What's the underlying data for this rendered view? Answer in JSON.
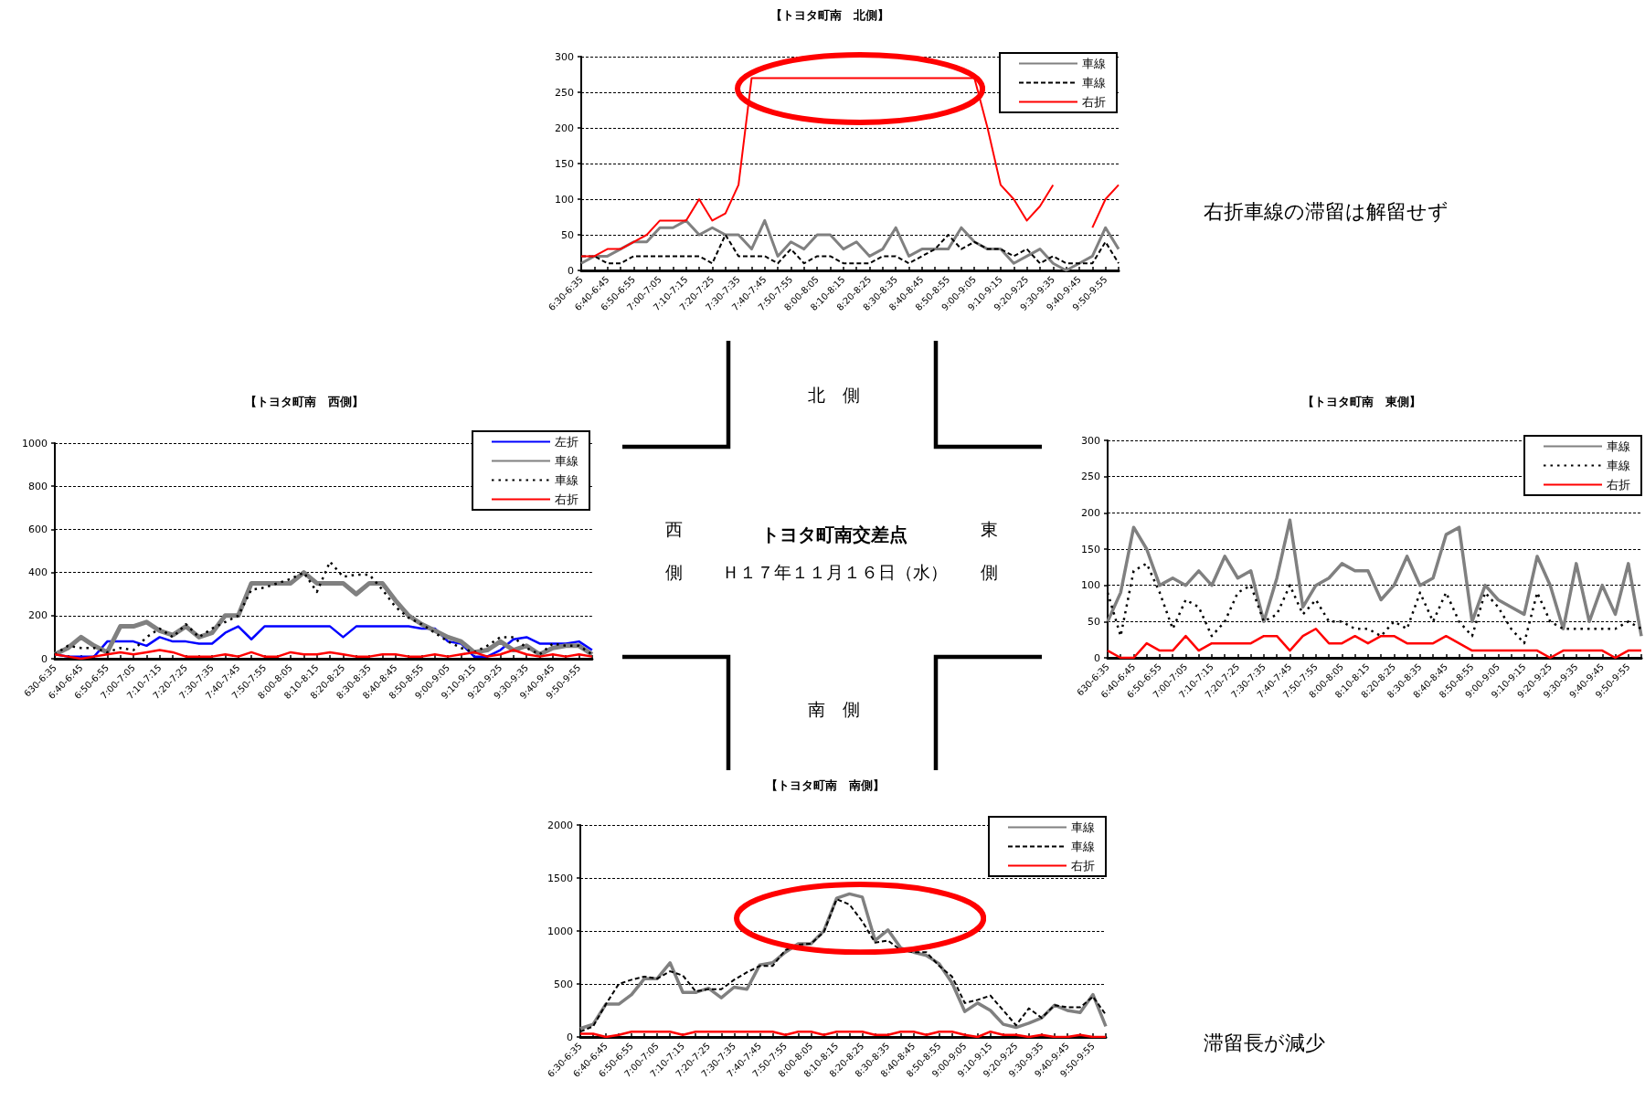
{
  "chart_data": [
    {
      "type": "line",
      "title": "【トヨタ町南　北側】",
      "categories": [
        "6:30-6:35",
        null,
        "6:40-6:45",
        null,
        "6:50-6:55",
        null,
        "7:00-7:05",
        null,
        "7:10-7:15",
        null,
        "7:20-7:25",
        null,
        "7:30-7:35",
        null,
        "7:40-7:45",
        null,
        "7:50-7:55",
        null,
        "8:00-8:05",
        null,
        "8:10-8:15",
        null,
        "8:20-8:25",
        null,
        "8:30-8:35",
        null,
        "8:40-8:45",
        null,
        "8:50-8:55",
        null,
        "9:00-9:05",
        null,
        "9:10-9:15",
        null,
        "9:20-9:25",
        null,
        "9:30-9:35",
        null,
        "9:40-9:45",
        null,
        "9:50-9:55",
        null
      ],
      "series": [
        {
          "name": "車線",
          "color": "#808080",
          "line_style": "solid",
          "values": [
            10,
            20,
            20,
            30,
            40,
            40,
            60,
            60,
            70,
            50,
            60,
            50,
            50,
            30,
            70,
            20,
            40,
            30,
            50,
            50,
            30,
            40,
            20,
            30,
            60,
            20,
            30,
            30,
            30,
            60,
            40,
            30,
            30,
            10,
            20,
            30,
            10,
            0,
            10,
            20,
            60,
            30
          ]
        },
        {
          "name": "車線",
          "color": "#000000",
          "line_style": "dashed",
          "values": [
            20,
            20,
            10,
            10,
            20,
            20,
            20,
            20,
            20,
            20,
            10,
            50,
            20,
            20,
            20,
            10,
            30,
            10,
            20,
            20,
            10,
            10,
            10,
            20,
            20,
            10,
            20,
            30,
            50,
            30,
            40,
            30,
            30,
            20,
            30,
            10,
            20,
            10,
            10,
            10,
            40,
            10
          ]
        },
        {
          "name": "右折",
          "color": "#ff0000",
          "line_style": "solid",
          "values": [
            20,
            20,
            30,
            30,
            40,
            50,
            70,
            70,
            70,
            100,
            70,
            80,
            120,
            270,
            270,
            270,
            270,
            270,
            270,
            270,
            270,
            270,
            270,
            270,
            270,
            270,
            270,
            270,
            270,
            270,
            270,
            200,
            120,
            100,
            70,
            90,
            120,
            null,
            null,
            60,
            100,
            120
          ]
        }
      ],
      "ylim": [
        0,
        300
      ],
      "yticks": [
        0,
        50,
        100,
        150,
        200,
        250,
        300
      ],
      "grid": "y",
      "legend": "top right",
      "marker": "none",
      "annotations": [
        "右折車線の滞留は解留せず"
      ]
    },
    {
      "type": "line",
      "title": "【トヨタ町南　西側】",
      "categories": [
        "630-6:35",
        null,
        "6:40-6:45",
        null,
        "6:50-6:55",
        null,
        "7:00-7:05",
        null,
        "7:10-7:15",
        null,
        "7:20-7:25",
        null,
        "7:30-7:35",
        null,
        "7:40-7:45",
        null,
        "7:50-7:55",
        null,
        "8:00-8:05",
        null,
        "8:10-8:15",
        null,
        "8:20-8:25",
        null,
        "8:30-8:35",
        null,
        "8:40-8:45",
        null,
        "8:50-8:55",
        null,
        "9:00-9:05",
        null,
        "9:10-9:15",
        null,
        "9:20-9:25",
        null,
        "9:30-9:35",
        null,
        "9:40-9:45",
        null,
        "9:50-9:55",
        null
      ],
      "series": [
        {
          "name": "左折",
          "color": "#0000ff",
          "line_style": "solid",
          "values": [
            20,
            10,
            10,
            10,
            80,
            80,
            80,
            60,
            100,
            80,
            80,
            70,
            70,
            120,
            150,
            90,
            150,
            150,
            150,
            150,
            150,
            150,
            100,
            150,
            150,
            150,
            150,
            150,
            140,
            140,
            80,
            70,
            10,
            10,
            40,
            90,
            100,
            70,
            70,
            70,
            80,
            40
          ]
        },
        {
          "name": "車線",
          "color": "#808080",
          "line_style": "solid",
          "values": [
            20,
            50,
            100,
            60,
            30,
            150,
            150,
            170,
            130,
            110,
            150,
            100,
            120,
            200,
            200,
            350,
            350,
            350,
            350,
            400,
            350,
            350,
            350,
            300,
            350,
            350,
            270,
            200,
            160,
            130,
            100,
            80,
            30,
            40,
            80,
            40,
            60,
            20,
            50,
            60,
            60,
            20
          ]
        },
        {
          "name": "車線",
          "color": "#000000",
          "line_style": "dotted",
          "values": [
            20,
            60,
            50,
            50,
            30,
            50,
            40,
            100,
            140,
            100,
            160,
            100,
            140,
            170,
            200,
            320,
            330,
            350,
            370,
            400,
            310,
            450,
            380,
            390,
            390,
            320,
            240,
            190,
            160,
            120,
            80,
            50,
            30,
            60,
            100,
            100,
            50,
            20,
            70,
            60,
            60,
            20
          ]
        },
        {
          "name": "右折",
          "color": "#ff0000",
          "line_style": "solid",
          "values": [
            20,
            10,
            0,
            10,
            20,
            30,
            20,
            30,
            40,
            30,
            10,
            10,
            10,
            20,
            10,
            30,
            10,
            10,
            30,
            20,
            20,
            30,
            20,
            10,
            10,
            20,
            20,
            10,
            10,
            20,
            10,
            20,
            30,
            10,
            20,
            40,
            20,
            10,
            20,
            10,
            20,
            10
          ]
        }
      ],
      "ylim": [
        0,
        1000
      ],
      "yticks": [
        0,
        200,
        400,
        600,
        800,
        1000
      ],
      "grid": "y",
      "legend": "top right",
      "marker": "none"
    },
    {
      "type": "other",
      "title": "トヨタ町南交差点",
      "subtitle": "Ｈ１７年１１月１６日（水）",
      "annotations": [
        "北　側",
        "西側",
        "東側",
        "南　側"
      ]
    },
    {
      "type": "line",
      "title": "【トヨタ町南　東側】",
      "categories": [
        "630-6:35",
        null,
        "6:40-6:45",
        null,
        "6:50-6:55",
        null,
        "7:00-7:05",
        null,
        "7:10-7:15",
        null,
        "7:20-7:25",
        null,
        "7:30-7:35",
        null,
        "7:40-7:45",
        null,
        "7:50-7:55",
        null,
        "8:00-8:05",
        null,
        "8:10-8:15",
        null,
        "8:20-8:25",
        null,
        "8:30-8:35",
        null,
        "8:40-8:45",
        null,
        "8:50-8:55",
        null,
        "9:00-9:05",
        null,
        "9:10-9:15",
        null,
        "9:20-9:25",
        null,
        "9:30-9:35",
        null,
        "9:40-9:45",
        null,
        "9:50-9:55",
        null
      ],
      "series": [
        {
          "name": "車線",
          "color": "#808080",
          "line_style": "solid",
          "values": [
            50,
            90,
            180,
            150,
            100,
            110,
            100,
            120,
            100,
            140,
            110,
            120,
            50,
            110,
            190,
            70,
            100,
            110,
            130,
            120,
            120,
            80,
            100,
            140,
            100,
            110,
            170,
            180,
            50,
            100,
            80,
            70,
            60,
            140,
            100,
            40,
            130,
            50,
            100,
            60,
            130,
            30
          ]
        },
        {
          "name": "車線",
          "color": "#000000",
          "line_style": "dotted",
          "values": [
            90,
            30,
            120,
            130,
            90,
            40,
            80,
            70,
            30,
            50,
            90,
            100,
            50,
            60,
            100,
            60,
            80,
            50,
            50,
            40,
            40,
            30,
            50,
            40,
            90,
            50,
            90,
            50,
            30,
            90,
            70,
            40,
            20,
            90,
            50,
            40,
            40,
            40,
            40,
            40,
            50,
            40
          ]
        },
        {
          "name": "右折",
          "color": "#ff0000",
          "line_style": "solid",
          "values": [
            10,
            0,
            0,
            20,
            10,
            10,
            30,
            10,
            20,
            20,
            20,
            20,
            30,
            30,
            10,
            30,
            40,
            20,
            20,
            30,
            20,
            30,
            30,
            20,
            20,
            20,
            30,
            20,
            10,
            10,
            10,
            10,
            10,
            10,
            0,
            10,
            10,
            10,
            10,
            0,
            10,
            10
          ]
        }
      ],
      "ylim": [
        0,
        300
      ],
      "yticks": [
        0,
        50,
        100,
        150,
        200,
        250,
        300
      ],
      "grid": "y",
      "legend": "top right",
      "marker": "none"
    },
    {
      "type": "line",
      "title": "【トヨタ町南　南側】",
      "categories": [
        "6:30-6:35",
        null,
        "6:40-6:45",
        null,
        "6:50-6:55",
        null,
        "7:00-7:05",
        null,
        "7:10-7:15",
        null,
        "7:20-7:25",
        null,
        "7:30-7:35",
        null,
        "7:40-7:45",
        null,
        "7:50-7:55",
        null,
        "8:00-8:05",
        null,
        "8:10-8:15",
        null,
        "8:20-8:25",
        null,
        "8:30-8:35",
        null,
        "8:40-8:45",
        null,
        "8:50-8:55",
        null,
        "9:00-9:05",
        null,
        "9:10-9:15",
        null,
        "9:20-9:25",
        null,
        "9:30-9:35",
        null,
        "9:40-9:45",
        null,
        "9:50-9:55",
        null
      ],
      "series": [
        {
          "name": "車線",
          "color": "#808080",
          "line_style": "solid",
          "values": [
            80,
            120,
            310,
            310,
            400,
            550,
            550,
            700,
            420,
            420,
            460,
            370,
            470,
            450,
            680,
            700,
            800,
            880,
            880,
            1000,
            1310,
            1350,
            1320,
            910,
            1010,
            840,
            800,
            770,
            690,
            510,
            240,
            320,
            250,
            120,
            90,
            130,
            180,
            300,
            250,
            230,
            400,
            100
          ]
        },
        {
          "name": "車線",
          "color": "#000000",
          "line_style": "dashed",
          "values": [
            50,
            100,
            310,
            500,
            540,
            570,
            550,
            620,
            580,
            430,
            450,
            450,
            540,
            610,
            670,
            670,
            820,
            870,
            880,
            990,
            1300,
            1250,
            1090,
            890,
            910,
            820,
            800,
            800,
            670,
            570,
            320,
            350,
            390,
            250,
            110,
            270,
            180,
            300,
            280,
            280,
            380,
            210
          ]
        },
        {
          "name": "右折",
          "color": "#ff0000",
          "line_style": "solid",
          "values": [
            30,
            30,
            0,
            20,
            50,
            50,
            50,
            50,
            20,
            50,
            50,
            50,
            50,
            50,
            50,
            50,
            20,
            50,
            50,
            20,
            50,
            50,
            50,
            20,
            20,
            50,
            50,
            20,
            50,
            50,
            20,
            0,
            50,
            20,
            20,
            0,
            20,
            0,
            0,
            20,
            0,
            0
          ]
        }
      ],
      "ylim": [
        0,
        2000
      ],
      "yticks": [
        0,
        500,
        1000,
        1500,
        2000
      ],
      "grid": "y",
      "legend": "top right",
      "marker": "none",
      "annotations": [
        "滞留長が減少"
      ]
    }
  ]
}
